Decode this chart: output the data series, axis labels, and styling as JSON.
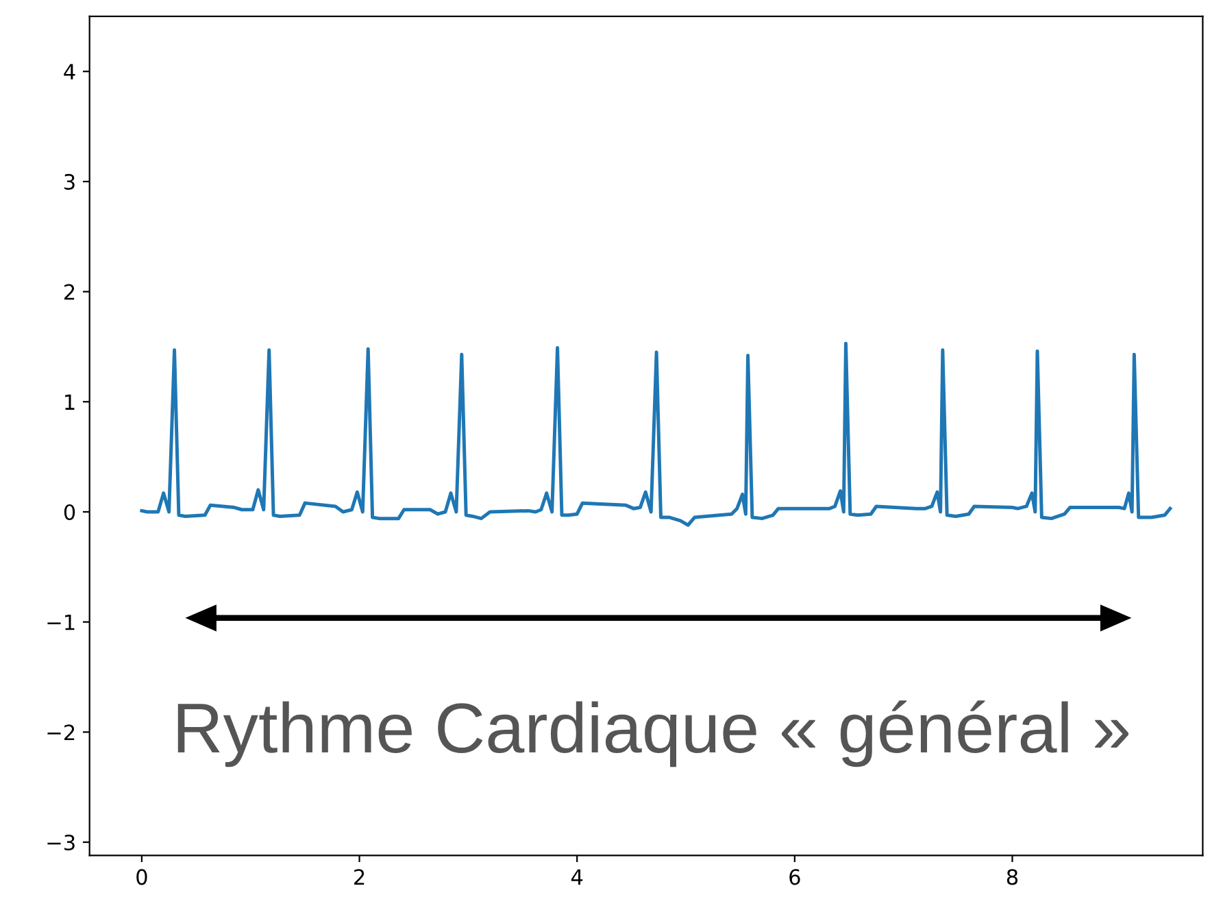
{
  "chart_data": {
    "type": "line",
    "x": [
      0.0,
      0.05,
      0.1,
      0.15,
      0.2,
      0.25,
      0.3,
      0.34,
      0.4,
      0.58,
      0.63,
      0.85,
      0.92,
      1.02,
      1.07,
      1.12,
      1.17,
      1.21,
      1.27,
      1.45,
      1.5,
      1.78,
      1.85,
      1.93,
      1.98,
      2.03,
      2.08,
      2.12,
      2.18,
      2.36,
      2.41,
      2.65,
      2.72,
      2.79,
      2.84,
      2.89,
      2.94,
      2.98,
      3.04,
      3.12,
      3.2,
      3.55,
      3.62,
      3.67,
      3.72,
      3.77,
      3.82,
      3.86,
      3.92,
      4.0,
      4.05,
      4.45,
      4.52,
      4.58,
      4.63,
      4.68,
      4.73,
      4.77,
      4.85,
      4.95,
      5.02,
      5.08,
      5.42,
      5.47,
      5.52,
      5.55,
      5.57,
      5.61,
      5.7,
      5.8,
      5.85,
      6.25,
      6.32,
      6.37,
      6.42,
      6.45,
      6.47,
      6.51,
      6.58,
      6.7,
      6.75,
      7.12,
      7.2,
      7.26,
      7.31,
      7.34,
      7.36,
      7.4,
      7.48,
      7.6,
      7.65,
      8.0,
      8.05,
      8.13,
      8.18,
      8.21,
      8.23,
      8.27,
      8.36,
      8.48,
      8.53,
      8.98,
      9.03,
      9.07,
      9.1,
      9.12,
      9.16,
      9.28,
      9.4,
      9.45
    ],
    "series": [
      {
        "color": "#1f77b4",
        "values": [
          0.01,
          0.0,
          0.0,
          0.0,
          0.17,
          0.0,
          1.47,
          -0.03,
          -0.04,
          -0.03,
          0.06,
          0.04,
          0.02,
          0.02,
          0.2,
          0.02,
          1.47,
          -0.03,
          -0.04,
          -0.03,
          0.08,
          0.05,
          0.0,
          0.02,
          0.18,
          0.0,
          1.48,
          -0.05,
          -0.06,
          -0.06,
          0.02,
          0.02,
          -0.02,
          0.0,
          0.17,
          0.0,
          1.43,
          -0.03,
          -0.04,
          -0.06,
          0.0,
          0.01,
          0.0,
          0.02,
          0.17,
          0.0,
          1.49,
          -0.03,
          -0.03,
          -0.02,
          0.08,
          0.06,
          0.03,
          0.04,
          0.18,
          0.0,
          1.45,
          -0.05,
          -0.05,
          -0.08,
          -0.12,
          -0.05,
          -0.02,
          0.03,
          0.16,
          -0.02,
          1.42,
          -0.05,
          -0.06,
          -0.03,
          0.03,
          0.03,
          0.03,
          0.05,
          0.19,
          0.0,
          1.53,
          -0.02,
          -0.03,
          -0.02,
          0.05,
          0.03,
          0.03,
          0.05,
          0.18,
          0.0,
          1.47,
          -0.03,
          -0.04,
          -0.02,
          0.05,
          0.04,
          0.03,
          0.05,
          0.17,
          0.0,
          1.46,
          -0.05,
          -0.06,
          -0.02,
          0.04,
          0.04,
          0.03,
          0.17,
          0.0,
          1.43,
          -0.05,
          -0.05,
          -0.03,
          0.03
        ]
      }
    ],
    "xlim": [
      -0.48,
      9.75
    ],
    "ylim": [
      -3.12,
      4.5
    ],
    "xticks": [
      0,
      2,
      4,
      6,
      8
    ],
    "yticks": [
      -3,
      -2,
      -1,
      0,
      1,
      2,
      3,
      4
    ],
    "grid": false,
    "legend": false,
    "marker": "none",
    "line_style": "solid",
    "annotations": [
      "Rythme Cardiaque « général »"
    ]
  }
}
